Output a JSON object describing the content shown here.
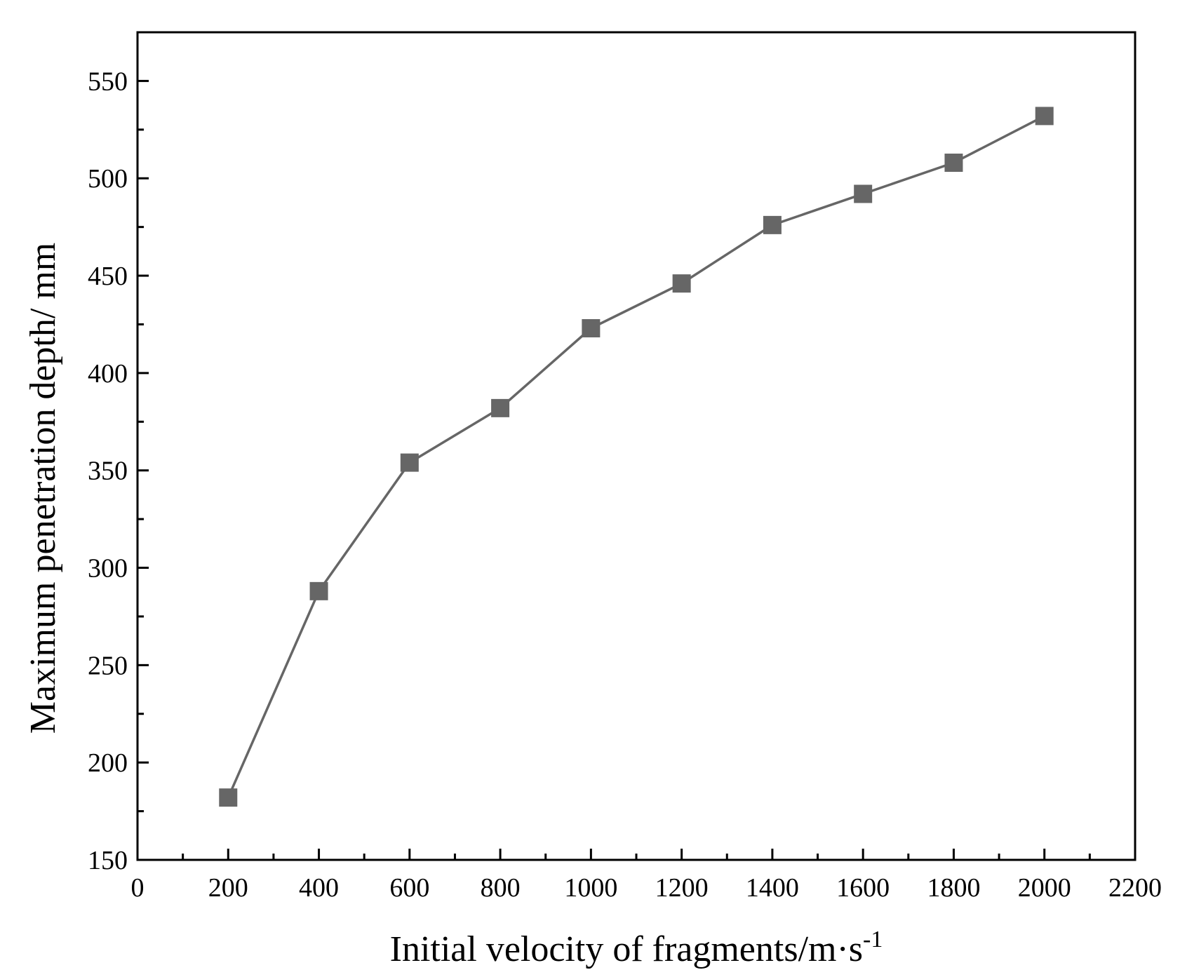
{
  "chart_data": {
    "type": "line",
    "xlabel": "Initial velocity of fragments/m·s",
    "xlabel_superscript": "-1",
    "ylabel": "Maximum penetration depth/ mm",
    "xlim": [
      0,
      2200
    ],
    "ylim": [
      150,
      575
    ],
    "xticks": [
      0,
      200,
      400,
      600,
      800,
      1000,
      1200,
      1400,
      1600,
      1800,
      2000,
      2200
    ],
    "yticks": [
      150,
      200,
      250,
      300,
      350,
      400,
      450,
      500,
      550
    ],
    "grid": false,
    "marker": "square",
    "series": [
      {
        "color": "#666666",
        "x": [
          200,
          400,
          600,
          800,
          1000,
          1200,
          1400,
          1600,
          1800,
          2000
        ],
        "y": [
          182,
          288,
          354,
          382,
          423,
          446,
          476,
          492,
          508,
          532
        ]
      }
    ]
  }
}
